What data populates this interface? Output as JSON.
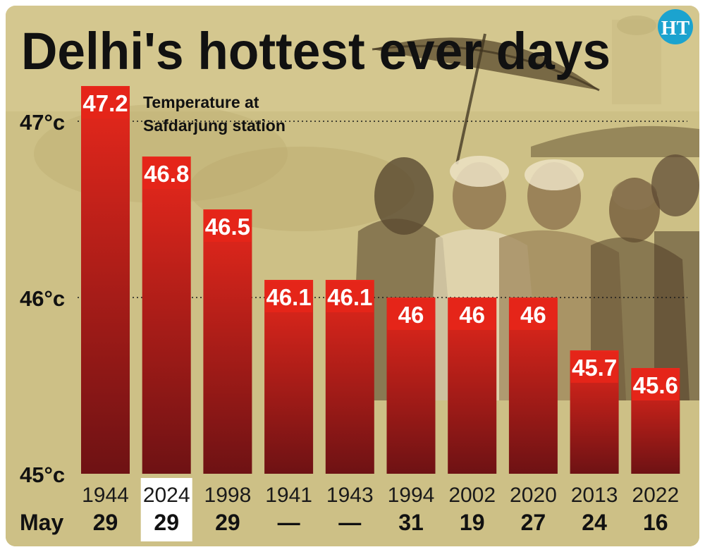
{
  "brand": {
    "logo_text": "HT"
  },
  "chart_data": {
    "type": "bar",
    "title": "Delhi's hottest ever days",
    "subtitle": [
      "Temperature at",
      "Safdarjung station"
    ],
    "y_tick_labels": [
      "47°c",
      "46°c",
      "45°c"
    ],
    "y_ticks": [
      47,
      46,
      45
    ],
    "ylim": [
      45,
      47.2
    ],
    "row_label": "May",
    "categories": [
      "1944",
      "2024",
      "1998",
      "1941",
      "1943",
      "1994",
      "2002",
      "2020",
      "2013",
      "2022"
    ],
    "days": [
      "29",
      "29",
      "29",
      "—",
      "—",
      "31",
      "19",
      "27",
      "24",
      "16"
    ],
    "values": [
      47.2,
      46.8,
      46.5,
      46.1,
      46.1,
      46,
      46,
      46,
      45.7,
      45.6
    ],
    "value_labels": [
      "47.2",
      "46.8",
      "46.5",
      "46.1",
      "46.1",
      "46",
      "46",
      "46",
      "45.7",
      "45.6"
    ],
    "highlight_category": "2024",
    "colors": {
      "bar_top": "#e8281c",
      "bar_bottom": "#6e1214",
      "label_bg": "#e52519",
      "logo": "#1ba3cf"
    }
  }
}
